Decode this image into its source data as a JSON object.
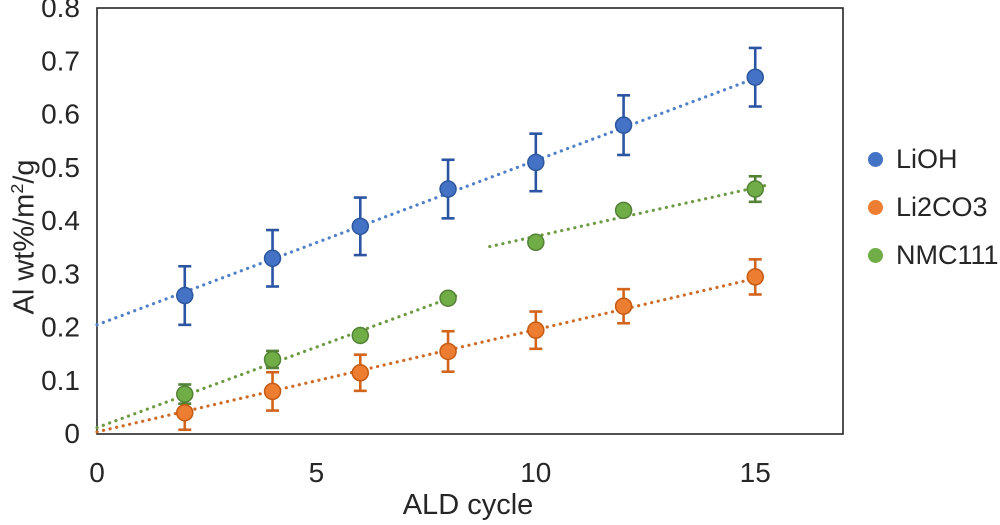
{
  "chart_data": {
    "type": "scatter",
    "title": "",
    "xlabel": "ALD cycle",
    "ylabel": "Al wt%/m2/g",
    "ylabel_parts": {
      "pre": "Al wt%/m",
      "sup": "2",
      "post": "/g"
    },
    "xlim": [
      0,
      17
    ],
    "ylim": [
      0,
      0.8
    ],
    "grid": false,
    "legend_position": "right",
    "x_ticks": [
      {
        "v": 0,
        "label": "0"
      },
      {
        "v": 5,
        "label": "5"
      },
      {
        "v": 10,
        "label": "10"
      },
      {
        "v": 15,
        "label": "15"
      }
    ],
    "y_ticks": [
      {
        "v": 0,
        "label": "0"
      },
      {
        "v": 0.1,
        "label": "0.1"
      },
      {
        "v": 0.2,
        "label": "0.2"
      },
      {
        "v": 0.3,
        "label": "0.3"
      },
      {
        "v": 0.4,
        "label": "0.4"
      },
      {
        "v": 0.5,
        "label": "0.5"
      },
      {
        "v": 0.6,
        "label": "0.6"
      },
      {
        "v": 0.7,
        "label": "0.7"
      },
      {
        "v": 0.8,
        "label": "0.8"
      }
    ],
    "x": [
      2,
      4,
      6,
      8,
      10,
      12,
      15
    ],
    "series": [
      {
        "name": "LiOH",
        "marker_color": "#4472C4",
        "marker_edge": "#2C579E",
        "error_color": "#2B55A3",
        "trend_color": "#4F80C9",
        "y": [
          0.26,
          0.33,
          0.39,
          0.46,
          0.51,
          0.58,
          0.67
        ],
        "yerr": [
          0.055,
          0.053,
          0.054,
          0.055,
          0.054,
          0.056,
          0.055
        ],
        "trend": [
          {
            "x1": 0,
            "y1": 0.205,
            "x2": 15,
            "y2": 0.668
          }
        ]
      },
      {
        "name": "Li2CO3",
        "marker_color": "#ED7D31",
        "marker_edge": "#C55A11",
        "error_color": "#D2641C",
        "trend_color": "#CE6A24",
        "y": [
          0.04,
          0.08,
          0.115,
          0.155,
          0.195,
          0.24,
          0.295
        ],
        "yerr": [
          0.032,
          0.036,
          0.034,
          0.038,
          0.035,
          0.032,
          0.033
        ],
        "trend": [
          {
            "x1": 0,
            "y1": 0.004,
            "x2": 15,
            "y2": 0.292
          }
        ]
      },
      {
        "name": "NMC111",
        "marker_color": "#70AD47",
        "marker_edge": "#538135",
        "error_color": "#538135",
        "trend_color": "#6D9A41",
        "y": [
          0.075,
          0.14,
          0.185,
          0.255,
          0.36,
          0.42,
          0.46
        ],
        "yerr": [
          0.018,
          0.016,
          0.008,
          0.008,
          0.008,
          0.008,
          0.024
        ],
        "trend": [
          {
            "x1": 0,
            "y1": 0.012,
            "x2": 8.2,
            "y2": 0.26
          },
          {
            "x1": 8.95,
            "y1": 0.352,
            "x2": 15.3,
            "y2": 0.468
          }
        ]
      }
    ],
    "legend": [
      {
        "label": "LiOH",
        "color": "#4472C4"
      },
      {
        "label": "Li2CO3",
        "color": "#ED7D31"
      },
      {
        "label": "NMC111",
        "color": "#70AD47"
      }
    ],
    "plot_border_color": "#262626",
    "text_color": "#262626"
  }
}
